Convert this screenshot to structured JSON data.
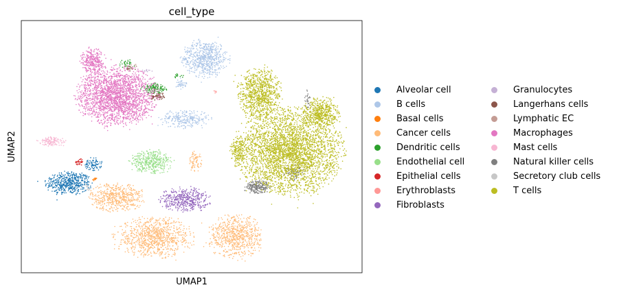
{
  "chart_data": {
    "type": "scatter",
    "title": "cell_type",
    "xlabel": "UMAP1",
    "ylabel": "UMAP2",
    "xlim": [
      0,
      100
    ],
    "ylim": [
      0,
      100
    ],
    "grid": false,
    "legend_position": "right",
    "series": [
      {
        "name": "Alveolar cell",
        "color": "#1f77b4",
        "clusters": [
          {
            "cx": 14,
            "cy": 35.5,
            "rx": 6.5,
            "ry": 4.5,
            "n": 500
          },
          {
            "cx": 21,
            "cy": 43,
            "rx": 2.5,
            "ry": 2.5,
            "n": 90
          }
        ]
      },
      {
        "name": "B cells",
        "color": "#aec7e8",
        "clusters": [
          {
            "cx": 54,
            "cy": 85,
            "rx": 6.5,
            "ry": 7,
            "n": 650
          },
          {
            "cx": 48,
            "cy": 61,
            "rx": 7,
            "ry": 3.5,
            "n": 260
          },
          {
            "cx": 47,
            "cy": 75,
            "rx": 1.5,
            "ry": 2,
            "n": 40
          }
        ]
      },
      {
        "name": "Basal cells",
        "color": "#ff7f0e",
        "clusters": [
          {
            "cx": 21.5,
            "cy": 37,
            "rx": 0.7,
            "ry": 0.7,
            "n": 14
          }
        ]
      },
      {
        "name": "Cancer cells",
        "color": "#ffbb78",
        "clusters": [
          {
            "cx": 28,
            "cy": 30,
            "rx": 7.5,
            "ry": 5.5,
            "n": 520
          },
          {
            "cx": 39,
            "cy": 14,
            "rx": 11,
            "ry": 7.5,
            "n": 900
          },
          {
            "cx": 63,
            "cy": 14.5,
            "rx": 7.5,
            "ry": 8,
            "n": 700
          },
          {
            "cx": 51,
            "cy": 44,
            "rx": 1.8,
            "ry": 4,
            "n": 80
          }
        ]
      },
      {
        "name": "Dendritic cells",
        "color": "#2ca02c",
        "clusters": [
          {
            "cx": 39,
            "cy": 73,
            "rx": 3.5,
            "ry": 2,
            "n": 130
          },
          {
            "cx": 31,
            "cy": 83,
            "rx": 2.5,
            "ry": 1.5,
            "n": 30
          },
          {
            "cx": 46,
            "cy": 78,
            "rx": 1.5,
            "ry": 1,
            "n": 14
          }
        ]
      },
      {
        "name": "Endothelial cell",
        "color": "#98df8a",
        "clusters": [
          {
            "cx": 38,
            "cy": 44,
            "rx": 6,
            "ry": 4.5,
            "n": 380
          }
        ]
      },
      {
        "name": "Epithelial cells",
        "color": "#d62728",
        "clusters": [
          {
            "cx": 17,
            "cy": 44,
            "rx": 1.2,
            "ry": 1.2,
            "n": 30
          }
        ]
      },
      {
        "name": "Erythroblasts",
        "color": "#ff9896",
        "clusters": [
          {
            "cx": 57,
            "cy": 72,
            "rx": 0.4,
            "ry": 1,
            "n": 5
          }
        ]
      },
      {
        "name": "Fibroblasts",
        "color": "#9467bd",
        "clusters": [
          {
            "cx": 48,
            "cy": 29,
            "rx": 7,
            "ry": 4.5,
            "n": 450
          }
        ]
      },
      {
        "name": "Granulocytes",
        "color": "#c5b0d5",
        "clusters": [
          {
            "cx": 37,
            "cy": 80,
            "rx": 1.5,
            "ry": 1,
            "n": 12
          }
        ]
      },
      {
        "name": "Langerhans cells",
        "color": "#8c564b",
        "clusters": [
          {
            "cx": 40,
            "cy": 70,
            "rx": 2.2,
            "ry": 1.5,
            "n": 70
          },
          {
            "cx": 32,
            "cy": 81,
            "rx": 1.5,
            "ry": 1,
            "n": 20
          }
        ]
      },
      {
        "name": "Lymphatic EC",
        "color": "#c49c94",
        "clusters": [
          {
            "cx": 33,
            "cy": 82,
            "rx": 1,
            "ry": 1,
            "n": 5
          }
        ]
      },
      {
        "name": "Macrophages",
        "color": "#e377c2",
        "clusters": [
          {
            "cx": 28,
            "cy": 70,
            "rx": 11,
            "ry": 11,
            "n": 2200
          },
          {
            "cx": 21,
            "cy": 84,
            "rx": 3.5,
            "ry": 5,
            "n": 300
          }
        ]
      },
      {
        "name": "Mast cells",
        "color": "#f7b6d2",
        "clusters": [
          {
            "cx": 9,
            "cy": 52,
            "rx": 4,
            "ry": 1.8,
            "n": 120
          }
        ]
      },
      {
        "name": "Natural killer cells",
        "color": "#7f7f7f",
        "clusters": [
          {
            "cx": 69.5,
            "cy": 34,
            "rx": 3.5,
            "ry": 2.5,
            "n": 220
          },
          {
            "cx": 80,
            "cy": 40,
            "rx": 3,
            "ry": 3,
            "n": 80
          },
          {
            "cx": 84,
            "cy": 68,
            "rx": 0.8,
            "ry": 5,
            "n": 30
          }
        ]
      },
      {
        "name": "Secretory club cells",
        "color": "#c7c7c7",
        "clusters": [
          {
            "cx": 19.5,
            "cy": 34,
            "rx": 0.8,
            "ry": 1.5,
            "n": 14
          }
        ]
      },
      {
        "name": "T cells",
        "color": "#bcbd22",
        "clusters": [
          {
            "cx": 79,
            "cy": 48,
            "rx": 14.5,
            "ry": 16,
            "n": 3300
          },
          {
            "cx": 70,
            "cy": 71,
            "rx": 6,
            "ry": 10,
            "n": 900
          },
          {
            "cx": 88,
            "cy": 63,
            "rx": 5,
            "ry": 6,
            "n": 500
          },
          {
            "cx": 64,
            "cy": 48,
            "rx": 2.5,
            "ry": 6,
            "n": 180
          }
        ]
      }
    ]
  }
}
